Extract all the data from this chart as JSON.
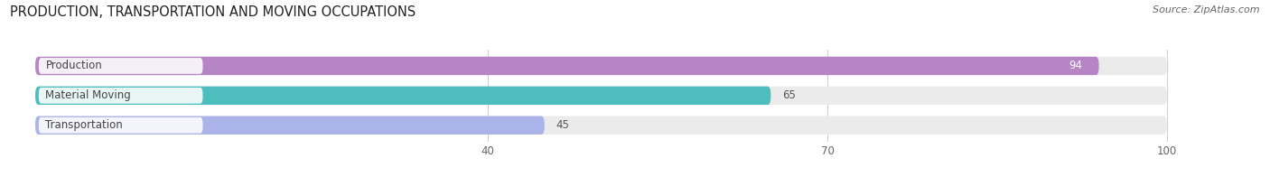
{
  "title": "PRODUCTION, TRANSPORTATION AND MOVING OCCUPATIONS",
  "source": "Source: ZipAtlas.com",
  "categories": [
    "Production",
    "Material Moving",
    "Transportation"
  ],
  "values": [
    94,
    65,
    45
  ],
  "colors": [
    "#b585c5",
    "#4dbdbd",
    "#aab4e8"
  ],
  "xlim_data": [
    0,
    100
  ],
  "display_xlim": [
    -2,
    108
  ],
  "xticks": [
    40,
    70,
    100
  ],
  "bar_height": 0.62,
  "title_fontsize": 10.5,
  "label_fontsize": 8.5,
  "value_fontsize": 8.5,
  "tick_fontsize": 8.5,
  "source_fontsize": 8,
  "background_color": "#ffffff",
  "bar_bg_color": "#ebebeb",
  "label_bg_color": "#ffffff",
  "grid_color": "#d0d0d8"
}
